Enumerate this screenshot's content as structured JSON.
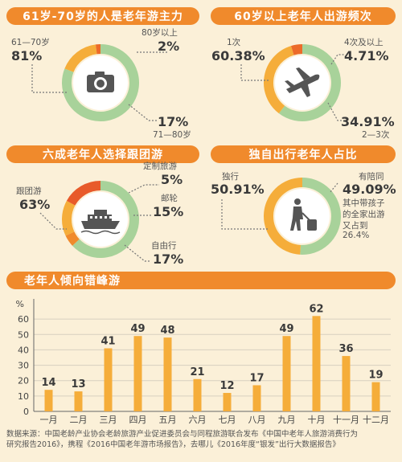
{
  "panels": {
    "age": {
      "title": "61岁-70岁的人是老年游主力",
      "a_name": "61—70岁",
      "a_val": "81%",
      "b_name": "80岁以上",
      "b_val": "2%",
      "c_val": "17%",
      "c_name": "71—80岁",
      "values": [
        81,
        17,
        2
      ],
      "colors": [
        "#a8d29a",
        "#f5ad3a",
        "#ec6b2a"
      ],
      "icon": "camera-icon"
    },
    "freq": {
      "title": "60岁以上老年人出游频次",
      "a_name": "1次",
      "a_val": "60.38%",
      "b_name": "4次及以上",
      "b_val": "4.71%",
      "c_val": "34.91%",
      "c_name": "2—3次",
      "values": [
        60.38,
        34.91,
        4.71
      ],
      "colors": [
        "#a8d29a",
        "#f5ad3a",
        "#ec6b2a"
      ],
      "icon": "airplane-icon"
    },
    "tour": {
      "title": "六成老年人选择跟团游",
      "a_name": "跟团游",
      "a_val": "63%",
      "b_name": "定制旅游",
      "b_val": "5%",
      "c_name": "邮轮",
      "c_val": "15%",
      "d_name": "自由行",
      "d_val": "17%",
      "values": [
        63,
        5,
        15,
        17
      ],
      "colors": [
        "#a8d29a",
        "#f08a2c",
        "#f5ad3a",
        "#e85a2a"
      ],
      "icon": "cruise-ship-icon"
    },
    "solo": {
      "title": "独自出行老年人占比",
      "a_name": "独行",
      "a_val": "50.91%",
      "b_name": "有陪同",
      "b_val": "49.09%",
      "note_1": "其中带孩子",
      "note_2": "的全家出游",
      "note_3": "又占到",
      "note_4": "26.4%",
      "values": [
        50.91,
        49.09
      ],
      "colors": [
        "#a8d29a",
        "#f5ad3a"
      ],
      "icon": "traveler-luggage-icon"
    }
  },
  "chart_title": "老年人倾向错峰游",
  "chart_data": {
    "type": "bar",
    "title": "老年人倾向错峰游",
    "ylabel": "%",
    "categories": [
      "一月",
      "二月",
      "三月",
      "四月",
      "五月",
      "六月",
      "七月",
      "八月",
      "九月",
      "十月",
      "十一月",
      "十二月"
    ],
    "values": [
      14,
      13,
      41,
      49,
      48,
      21,
      12,
      17,
      49,
      62,
      36,
      19
    ],
    "yticks": [
      0,
      10,
      20,
      30,
      40,
      50,
      60
    ],
    "ylim": [
      0,
      70
    ],
    "grid": true,
    "bar_color": "#f5ad3a"
  },
  "source_line1": "数据来源：中国老龄产业协会老龄旅游产业促进委员会与同程旅游联合发布《中国中老年人旅游消费行为",
  "source_line2": "研究报告2016》，携程《2016中国老年游市场报告》，去哪儿《2016年度“银发”出行大数据报告》"
}
